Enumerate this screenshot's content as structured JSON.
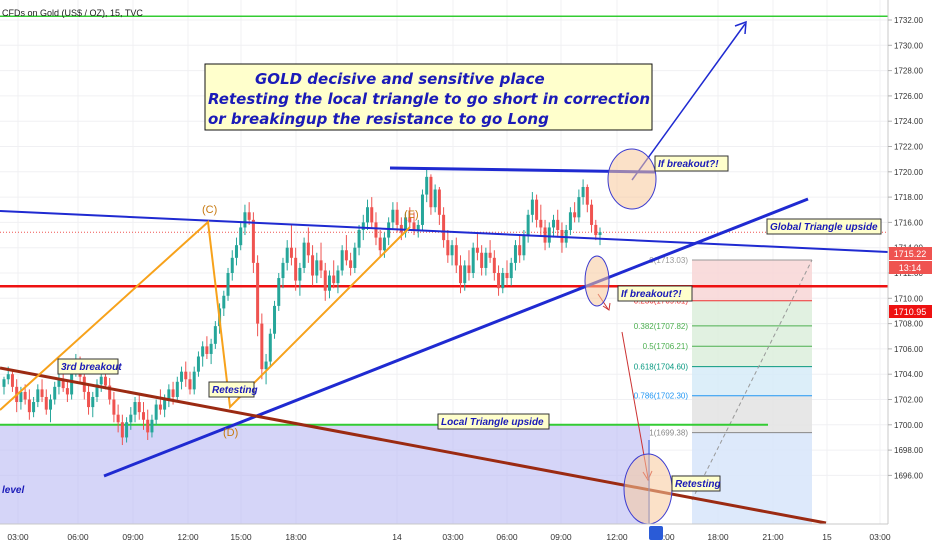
{
  "header": {
    "symbol_label": "CFDs on Gold (US$ / OZ), 15, TVC"
  },
  "colors": {
    "up": "#26a69a",
    "down": "#ef5350",
    "green_line": "#33cc33",
    "red_line": "#ee1111",
    "blue_line": "#1f2ad1",
    "orange": "#f7a21b",
    "brown": "#9b2a12",
    "note_bg": "#ffffcc"
  },
  "annotations": {
    "main_line1": "GOLD decisive and sensitive place",
    "main_line2": "Retesting the local triangle to go short in correction",
    "main_line3": "or breakingup the resistance to go Long",
    "if_breakout_top": "If breakout?!",
    "if_breakout_mid": "If breakout?!",
    "global_triangle": "Global Triangle upside",
    "local_triangle": "Local Triangle upside",
    "retesting_left": "Retesting",
    "retesting_right": "Retesting",
    "third_breakout": "3rd breakout",
    "level": "level",
    "label_c": "(C)",
    "label_d": "(D)",
    "label_e": "(E)"
  },
  "price_axis": {
    "ticks": [
      "1732.00",
      "1730.00",
      "1728.00",
      "1726.00",
      "1724.00",
      "1722.00",
      "1720.00",
      "1718.00",
      "1716.00",
      "1714.00",
      "1712.00",
      "1710.00",
      "1708.00",
      "1706.00",
      "1704.00",
      "1702.00",
      "1700.00",
      "1698.00",
      "1696.00"
    ],
    "price_tag": "1715.22",
    "countdown_tag": "13:14",
    "level_tag": "1710.95"
  },
  "time_axis": {
    "ticks": [
      "03:00",
      "06:00",
      "09:00",
      "12:00",
      "15:00",
      "18:00",
      "14",
      "03:00",
      "06:00",
      "09:00",
      "12:00",
      "15:00",
      "18:00",
      "21:00",
      "15",
      "03:00"
    ]
  },
  "fib": {
    "levels": [
      {
        "label": "0(1713.03)",
        "price": 1713.03,
        "color": "#999999"
      },
      {
        "label": "0.236(1709.81)",
        "price": 1709.81,
        "color": "#ee3333"
      },
      {
        "label": "0.382(1707.82)",
        "price": 1707.82,
        "color": "#4caf50"
      },
      {
        "label": "0.5(1706.21)",
        "price": 1706.21,
        "color": "#4caf50"
      },
      {
        "label": "0.618(1704.60)",
        "price": 1704.6,
        "color": "#089981"
      },
      {
        "label": "0.786(1702.30)",
        "price": 1702.3,
        "color": "#2196f3"
      },
      {
        "label": "1(1699.38)",
        "price": 1699.38,
        "color": "#888888"
      }
    ]
  },
  "chart_data": {
    "type": "candlestick",
    "title": "CFDs on Gold (US$ / OZ), 15, TVC",
    "ylim": [
      1695.5,
      1733.2
    ],
    "y_ticks": [
      1732,
      1730,
      1728,
      1726,
      1724,
      1722,
      1720,
      1718,
      1716,
      1714,
      1712,
      1710,
      1708,
      1706,
      1704,
      1702,
      1700,
      1698,
      1696
    ],
    "levels": {
      "upper_green": 1732.3,
      "support_green": 1700.0,
      "red_resistance": 1710.95,
      "blue_top": 1720.3,
      "last_price": 1715.22
    },
    "x_labels": [
      "03:00",
      "06:00",
      "09:00",
      "12:00",
      "15:00",
      "18:00",
      "14",
      "03:00",
      "06:00",
      "09:00",
      "12:00",
      "15:00",
      "18:00",
      "21:00",
      "15",
      "03:00"
    ],
    "candles": [
      [
        1703.0,
        1703.8,
        1702.4,
        1703.6
      ],
      [
        1703.6,
        1704.6,
        1703.2,
        1704.0
      ],
      [
        1704.0,
        1704.4,
        1702.6,
        1703.0
      ],
      [
        1703.0,
        1703.6,
        1701.0,
        1701.8
      ],
      [
        1701.8,
        1703.0,
        1701.2,
        1702.6
      ],
      [
        1702.6,
        1703.2,
        1701.6,
        1702.0
      ],
      [
        1702.0,
        1702.8,
        1700.4,
        1701.0
      ],
      [
        1701.0,
        1702.2,
        1700.6,
        1701.8
      ],
      [
        1701.8,
        1703.2,
        1701.4,
        1702.8
      ],
      [
        1702.8,
        1703.6,
        1701.8,
        1702.2
      ],
      [
        1702.2,
        1702.8,
        1700.8,
        1701.2
      ],
      [
        1701.2,
        1702.4,
        1700.2,
        1702.0
      ],
      [
        1702.0,
        1703.4,
        1701.6,
        1703.0
      ],
      [
        1703.0,
        1704.2,
        1702.4,
        1703.6
      ],
      [
        1703.6,
        1704.4,
        1702.6,
        1702.9
      ],
      [
        1702.9,
        1703.5,
        1701.8,
        1702.4
      ],
      [
        1702.4,
        1704.8,
        1702.0,
        1704.4
      ],
      [
        1704.4,
        1705.6,
        1703.8,
        1705.0
      ],
      [
        1705.0,
        1705.4,
        1703.4,
        1703.8
      ],
      [
        1703.8,
        1704.2,
        1702.0,
        1702.6
      ],
      [
        1702.6,
        1703.2,
        1700.8,
        1701.4
      ],
      [
        1701.4,
        1702.6,
        1700.6,
        1702.2
      ],
      [
        1702.2,
        1703.6,
        1701.8,
        1703.2
      ],
      [
        1703.2,
        1704.4,
        1702.6,
        1703.8
      ],
      [
        1703.8,
        1704.6,
        1702.8,
        1703.1
      ],
      [
        1703.1,
        1703.7,
        1701.6,
        1702.0
      ],
      [
        1702.0,
        1702.6,
        1700.2,
        1700.8
      ],
      [
        1700.8,
        1701.6,
        1699.4,
        1700.2
      ],
      [
        1700.2,
        1700.8,
        1698.4,
        1699.0
      ],
      [
        1699.0,
        1700.6,
        1698.6,
        1700.2
      ],
      [
        1700.2,
        1701.4,
        1699.6,
        1700.8
      ],
      [
        1700.8,
        1702.2,
        1700.2,
        1701.8
      ],
      [
        1701.8,
        1702.4,
        1700.4,
        1701.0
      ],
      [
        1701.0,
        1701.8,
        1699.6,
        1700.4
      ],
      [
        1700.4,
        1701.2,
        1698.8,
        1699.4
      ],
      [
        1699.4,
        1700.8,
        1699.0,
        1700.4
      ],
      [
        1700.4,
        1702.0,
        1700.0,
        1701.6
      ],
      [
        1701.6,
        1702.8,
        1700.8,
        1701.2
      ],
      [
        1701.2,
        1702.4,
        1700.6,
        1702.0
      ],
      [
        1702.0,
        1703.2,
        1701.4,
        1702.8
      ],
      [
        1702.8,
        1703.4,
        1701.6,
        1702.2
      ],
      [
        1702.2,
        1703.8,
        1701.8,
        1703.4
      ],
      [
        1703.4,
        1704.6,
        1702.8,
        1704.2
      ],
      [
        1704.2,
        1705.0,
        1703.0,
        1703.6
      ],
      [
        1703.6,
        1704.2,
        1702.4,
        1702.8
      ],
      [
        1702.8,
        1704.6,
        1702.4,
        1704.2
      ],
      [
        1704.2,
        1705.8,
        1703.8,
        1705.4
      ],
      [
        1705.4,
        1706.6,
        1704.6,
        1706.2
      ],
      [
        1706.2,
        1707.0,
        1705.2,
        1705.6
      ],
      [
        1705.6,
        1706.8,
        1704.8,
        1706.4
      ],
      [
        1706.4,
        1708.2,
        1706.0,
        1707.8
      ],
      [
        1707.8,
        1709.6,
        1707.2,
        1709.2
      ],
      [
        1709.2,
        1710.6,
        1708.6,
        1710.2
      ],
      [
        1710.2,
        1712.4,
        1709.8,
        1712.0
      ],
      [
        1712.0,
        1713.8,
        1711.4,
        1713.2
      ],
      [
        1713.2,
        1714.8,
        1712.6,
        1714.2
      ],
      [
        1714.2,
        1716.0,
        1713.8,
        1715.6
      ],
      [
        1715.6,
        1717.4,
        1715.0,
        1716.8
      ],
      [
        1716.8,
        1717.6,
        1715.8,
        1716.2
      ],
      [
        1716.2,
        1716.8,
        1712.0,
        1712.8
      ],
      [
        1712.8,
        1713.4,
        1707.0,
        1708.0
      ],
      [
        1708.0,
        1708.8,
        1703.6,
        1704.4
      ],
      [
        1704.4,
        1705.6,
        1703.2,
        1705.0
      ],
      [
        1705.0,
        1707.6,
        1704.6,
        1707.2
      ],
      [
        1707.2,
        1709.8,
        1706.8,
        1709.4
      ],
      [
        1709.4,
        1712.0,
        1709.0,
        1711.6
      ],
      [
        1711.6,
        1713.2,
        1710.8,
        1712.8
      ],
      [
        1712.8,
        1714.6,
        1712.2,
        1714.0
      ],
      [
        1714.0,
        1715.8,
        1712.6,
        1713.2
      ],
      [
        1713.2,
        1714.0,
        1710.6,
        1711.4
      ],
      [
        1711.4,
        1712.8,
        1710.2,
        1712.4
      ],
      [
        1712.4,
        1714.8,
        1712.0,
        1714.4
      ],
      [
        1714.4,
        1715.6,
        1712.8,
        1713.4
      ],
      [
        1713.4,
        1714.2,
        1711.0,
        1711.8
      ],
      [
        1711.8,
        1713.6,
        1711.2,
        1713.0
      ],
      [
        1713.0,
        1714.4,
        1711.6,
        1712.2
      ],
      [
        1712.2,
        1712.8,
        1709.8,
        1710.6
      ],
      [
        1710.6,
        1712.2,
        1710.0,
        1711.8
      ],
      [
        1711.8,
        1713.0,
        1710.8,
        1711.2
      ],
      [
        1711.2,
        1712.6,
        1710.4,
        1712.2
      ],
      [
        1712.2,
        1714.2,
        1711.8,
        1713.8
      ],
      [
        1713.8,
        1715.0,
        1712.6,
        1713.0
      ],
      [
        1713.0,
        1713.6,
        1711.8,
        1712.4
      ],
      [
        1712.4,
        1714.4,
        1712.0,
        1714.0
      ],
      [
        1714.0,
        1715.8,
        1713.4,
        1715.4
      ],
      [
        1715.4,
        1716.6,
        1714.6,
        1716.0
      ],
      [
        1716.0,
        1717.8,
        1715.4,
        1717.2
      ],
      [
        1717.2,
        1718.0,
        1715.6,
        1716.0
      ],
      [
        1716.0,
        1716.8,
        1714.2,
        1714.8
      ],
      [
        1714.8,
        1715.4,
        1713.2,
        1713.8
      ],
      [
        1713.8,
        1715.2,
        1713.2,
        1714.8
      ],
      [
        1714.8,
        1716.4,
        1714.2,
        1716.0
      ],
      [
        1716.0,
        1717.6,
        1715.4,
        1717.0
      ],
      [
        1717.0,
        1717.6,
        1715.2,
        1715.8
      ],
      [
        1715.8,
        1716.4,
        1714.6,
        1715.2
      ],
      [
        1715.2,
        1716.8,
        1714.8,
        1716.4
      ],
      [
        1716.4,
        1717.2,
        1715.6,
        1716.0
      ],
      [
        1716.0,
        1716.8,
        1715.0,
        1715.4
      ],
      [
        1715.4,
        1716.2,
        1714.8,
        1715.8
      ],
      [
        1715.8,
        1718.6,
        1715.4,
        1718.2
      ],
      [
        1718.2,
        1720.2,
        1717.6,
        1719.6
      ],
      [
        1719.6,
        1719.8,
        1716.6,
        1717.2
      ],
      [
        1717.2,
        1719.0,
        1716.8,
        1718.6
      ],
      [
        1718.6,
        1718.8,
        1715.8,
        1716.6
      ],
      [
        1716.6,
        1717.2,
        1714.0,
        1714.6
      ],
      [
        1714.6,
        1715.4,
        1712.8,
        1713.4
      ],
      [
        1713.4,
        1714.6,
        1712.6,
        1714.2
      ],
      [
        1714.2,
        1714.8,
        1712.0,
        1712.6
      ],
      [
        1712.6,
        1713.4,
        1710.4,
        1711.2
      ],
      [
        1711.2,
        1713.0,
        1710.6,
        1712.6
      ],
      [
        1712.6,
        1713.8,
        1711.4,
        1712.0
      ],
      [
        1712.0,
        1714.4,
        1711.6,
        1714.0
      ],
      [
        1714.0,
        1715.2,
        1713.0,
        1713.6
      ],
      [
        1713.6,
        1714.2,
        1711.8,
        1712.4
      ],
      [
        1712.4,
        1714.0,
        1711.8,
        1713.6
      ],
      [
        1713.6,
        1714.6,
        1712.8,
        1713.2
      ],
      [
        1713.2,
        1713.8,
        1711.4,
        1712.0
      ],
      [
        1712.0,
        1712.6,
        1710.2,
        1710.8
      ],
      [
        1710.8,
        1712.4,
        1710.4,
        1712.0
      ],
      [
        1712.0,
        1713.0,
        1711.0,
        1711.6
      ],
      [
        1711.6,
        1713.2,
        1711.0,
        1712.8
      ],
      [
        1712.8,
        1714.6,
        1712.2,
        1714.2
      ],
      [
        1714.2,
        1715.0,
        1712.8,
        1713.4
      ],
      [
        1713.4,
        1715.4,
        1713.0,
        1715.0
      ],
      [
        1715.0,
        1717.0,
        1714.4,
        1716.6
      ],
      [
        1716.6,
        1718.4,
        1716.0,
        1717.8
      ],
      [
        1717.8,
        1718.2,
        1715.6,
        1716.2
      ],
      [
        1716.2,
        1717.4,
        1715.0,
        1715.6
      ],
      [
        1715.6,
        1716.2,
        1713.8,
        1714.4
      ],
      [
        1714.4,
        1716.0,
        1714.0,
        1715.6
      ],
      [
        1715.6,
        1716.6,
        1714.8,
        1716.2
      ],
      [
        1716.2,
        1717.0,
        1714.8,
        1715.4
      ],
      [
        1715.4,
        1716.0,
        1713.6,
        1714.4
      ],
      [
        1714.4,
        1715.8,
        1714.0,
        1715.4
      ],
      [
        1715.4,
        1717.2,
        1715.0,
        1716.8
      ],
      [
        1716.8,
        1717.6,
        1716.0,
        1716.4
      ],
      [
        1716.4,
        1718.6,
        1716.0,
        1718.0
      ],
      [
        1718.0,
        1719.4,
        1717.4,
        1718.8
      ],
      [
        1718.8,
        1719.0,
        1716.8,
        1717.4
      ],
      [
        1717.4,
        1717.8,
        1715.2,
        1715.8
      ],
      [
        1715.8,
        1716.2,
        1714.6,
        1715.0
      ],
      [
        1715.0,
        1715.6,
        1714.2,
        1715.22
      ]
    ]
  }
}
